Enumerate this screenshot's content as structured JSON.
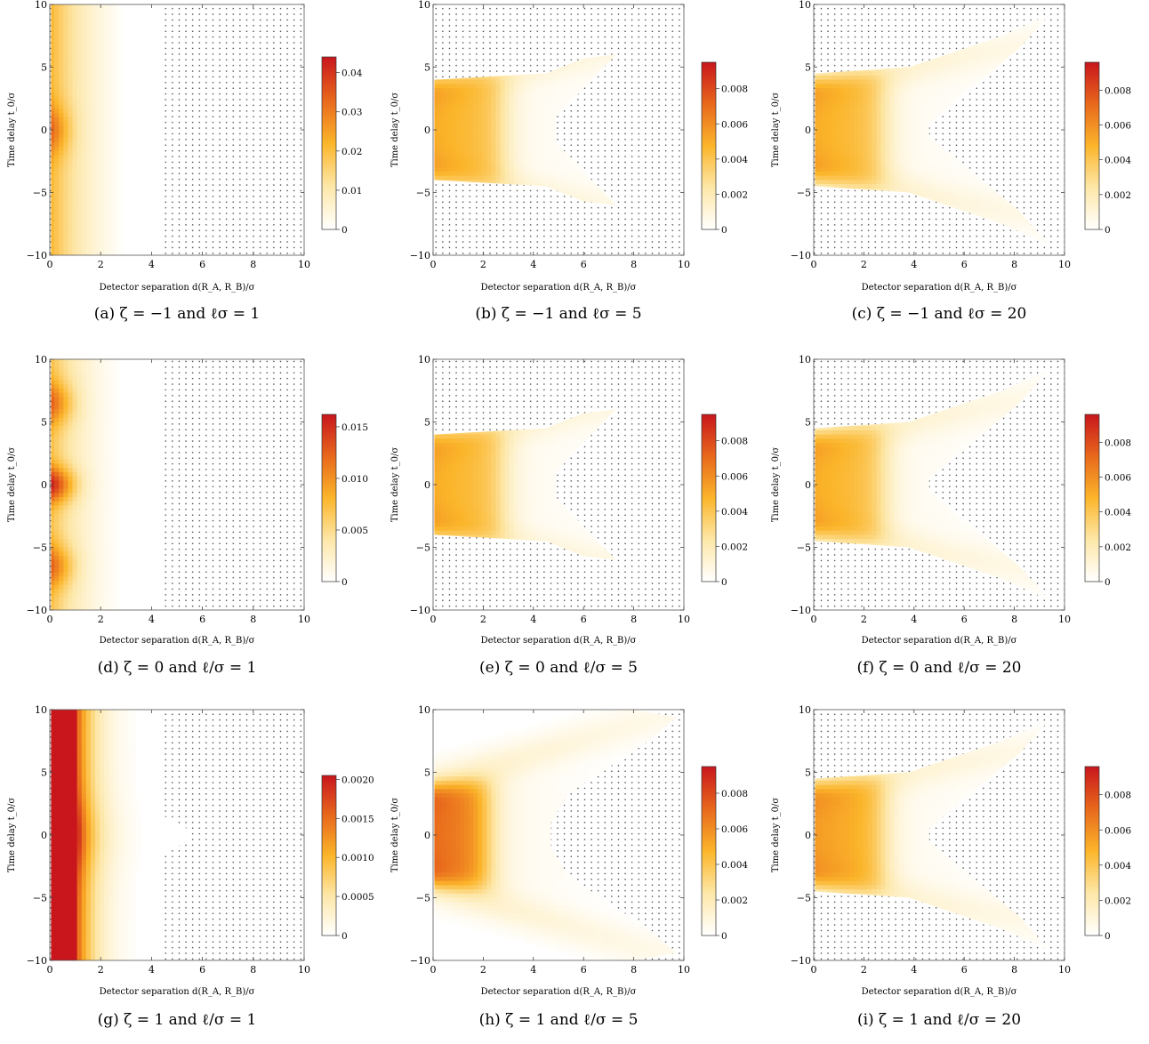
{
  "figure": {
    "xlabel": "Detector separation  d(R_A, R_B)/σ",
    "ylabel": "Time delay  t_0/σ",
    "x_ticks": [
      0,
      2,
      4,
      6,
      8,
      10
    ],
    "y_ticks": [
      10,
      5,
      0,
      -5,
      -10
    ],
    "colormap": [
      "#ffffff",
      "#fde7a8",
      "#fbb52a",
      "#e8681c",
      "#c8161c"
    ]
  },
  "chart_data": [
    {
      "id": "a",
      "type": "heatmap",
      "caption": "(a) ζ = −1 and ℓσ = 1",
      "zeta": -1,
      "l_sigma": 1,
      "xlim": [
        0,
        10
      ],
      "ylim": [
        -10,
        10
      ],
      "colorbar_ticks": [
        "0.04",
        "0.03",
        "0.02",
        "0.01",
        "0"
      ],
      "colorbar_values": [
        0.04,
        0.03,
        0.02,
        0.01,
        0
      ],
      "colorbar_max": 0.044
    },
    {
      "id": "b",
      "type": "heatmap",
      "caption": "(b) ζ = −1 and ℓσ = 5",
      "zeta": -1,
      "l_sigma": 5,
      "xlim": [
        0,
        10
      ],
      "ylim": [
        -10,
        10
      ],
      "colorbar_ticks": [
        "0.008",
        "0.006",
        "0.004",
        "0.002",
        "0"
      ],
      "colorbar_values": [
        0.008,
        0.006,
        0.004,
        0.002,
        0
      ],
      "colorbar_max": 0.0095
    },
    {
      "id": "c",
      "type": "heatmap",
      "caption": "(c) ζ = −1 and ℓσ = 20",
      "zeta": -1,
      "l_sigma": 20,
      "xlim": [
        0,
        10
      ],
      "ylim": [
        -10,
        10
      ],
      "colorbar_ticks": [
        "0.008",
        "0.006",
        "0.004",
        "0.002",
        "0"
      ],
      "colorbar_values": [
        0.008,
        0.006,
        0.004,
        0.002,
        0
      ],
      "colorbar_max": 0.0096
    },
    {
      "id": "d",
      "type": "heatmap",
      "caption": "(d) ζ = 0 and ℓ/σ = 1",
      "zeta": 0,
      "l_sigma": 1,
      "xlim": [
        0,
        10
      ],
      "ylim": [
        -10,
        10
      ],
      "colorbar_ticks": [
        "0.015",
        "0.010",
        "0.005",
        "0"
      ],
      "colorbar_values": [
        0.015,
        0.01,
        0.005,
        0
      ],
      "colorbar_max": 0.0162
    },
    {
      "id": "e",
      "type": "heatmap",
      "caption": "(e) ζ = 0 and ℓ/σ = 5",
      "zeta": 0,
      "l_sigma": 5,
      "xlim": [
        0,
        10
      ],
      "ylim": [
        -10,
        10
      ],
      "colorbar_ticks": [
        "0.008",
        "0.006",
        "0.004",
        "0.002",
        "0"
      ],
      "colorbar_values": [
        0.008,
        0.006,
        0.004,
        0.002,
        0
      ],
      "colorbar_max": 0.0095
    },
    {
      "id": "f",
      "type": "heatmap",
      "caption": "(f) ζ = 0 and ℓ/σ = 20",
      "zeta": 0,
      "l_sigma": 20,
      "xlim": [
        0,
        10
      ],
      "ylim": [
        -10,
        10
      ],
      "colorbar_ticks": [
        "0.008",
        "0.006",
        "0.004",
        "0.002",
        "0"
      ],
      "colorbar_values": [
        0.008,
        0.006,
        0.004,
        0.002,
        0
      ],
      "colorbar_max": 0.0096
    },
    {
      "id": "g",
      "type": "heatmap",
      "caption": "(g) ζ = 1 and ℓ/σ = 1",
      "zeta": 1,
      "l_sigma": 1,
      "xlim": [
        0,
        10
      ],
      "ylim": [
        -10,
        10
      ],
      "colorbar_ticks": [
        "0.0020",
        "0.0015",
        "0.0010",
        "0.0005",
        "0"
      ],
      "colorbar_values": [
        0.002,
        0.0015,
        0.001,
        0.0005,
        0
      ],
      "colorbar_max": 0.00205
    },
    {
      "id": "h",
      "type": "heatmap",
      "caption": "(h) ζ = 1 and ℓ/σ = 5",
      "zeta": 1,
      "l_sigma": 5,
      "xlim": [
        0,
        10
      ],
      "ylim": [
        -10,
        10
      ],
      "colorbar_ticks": [
        "0.008",
        "0.006",
        "0.004",
        "0.002",
        "0"
      ],
      "colorbar_values": [
        0.008,
        0.006,
        0.004,
        0.002,
        0
      ],
      "colorbar_max": 0.0095
    },
    {
      "id": "i",
      "type": "heatmap",
      "caption": "(i) ζ = 1 and ℓ/σ = 20",
      "zeta": 1,
      "l_sigma": 20,
      "xlim": [
        0,
        10
      ],
      "ylim": [
        -10,
        10
      ],
      "colorbar_ticks": [
        "0.008",
        "0.006",
        "0.004",
        "0.002",
        "0"
      ],
      "colorbar_values": [
        0.008,
        0.006,
        0.004,
        0.002,
        0
      ],
      "colorbar_max": 0.0096
    }
  ]
}
